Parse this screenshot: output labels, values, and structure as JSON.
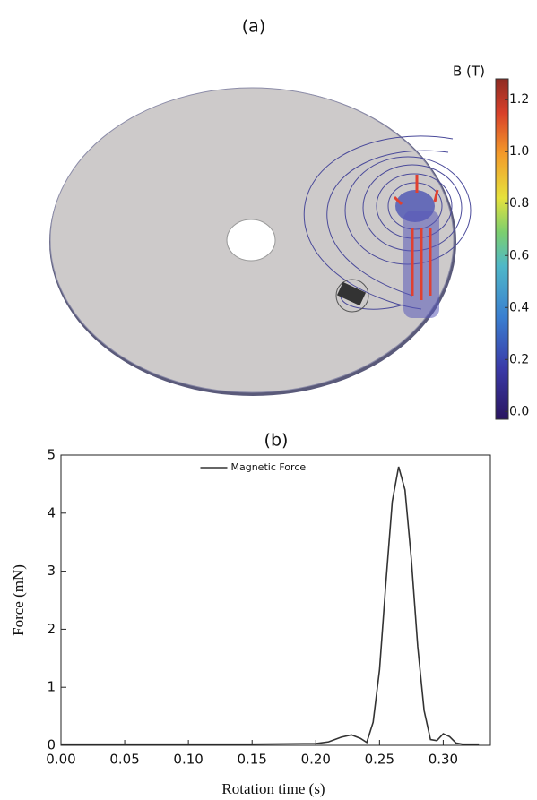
{
  "chart_data": [
    {
      "type": "colorbar",
      "panel_label": "(a)",
      "title": "B (T)",
      "ylim": [
        -0.03,
        1.28
      ],
      "yticks": [
        {
          "value": 0,
          "label": "0.0"
        },
        0.2,
        0.4,
        0.6,
        0.8,
        {
          "value": 1,
          "label": "1.0"
        },
        1.2
      ]
    },
    {
      "type": "line",
      "panel_label": "(b)",
      "x_label": "Rotation time (s)",
      "y_label": "Force (mN)",
      "x": [
        0,
        0.05,
        0.1,
        0.15,
        0.2,
        0.21,
        0.22,
        0.228,
        0.235,
        0.24,
        0.245,
        0.25,
        0.255,
        0.26,
        0.265,
        0.27,
        0.275,
        0.28,
        0.285,
        0.29,
        0.295,
        0.3,
        0.305,
        0.31,
        0.315,
        0.32,
        0.328
      ],
      "series": [
        {
          "name": "Magnetic Force",
          "color": "#333333",
          "values": [
            0.02,
            0.02,
            0.02,
            0.02,
            0.03,
            0.06,
            0.14,
            0.18,
            0.12,
            0.05,
            0.4,
            1.3,
            2.8,
            4.2,
            4.8,
            4.4,
            3.2,
            1.7,
            0.6,
            0.1,
            0.08,
            0.2,
            0.15,
            0.04,
            0.02,
            0.02,
            0.02
          ]
        }
      ],
      "xlim": [
        0,
        0.337
      ],
      "ylim": [
        0,
        5
      ],
      "xticks": [
        {
          "value": 0,
          "label": "0.00"
        },
        0.05,
        {
          "value": 0.1,
          "label": "0.10"
        },
        0.15,
        {
          "value": 0.2,
          "label": "0.20"
        },
        0.25,
        {
          "value": 0.3,
          "label": "0.30"
        }
      ],
      "yticks": [
        0,
        1,
        2,
        3,
        4,
        5
      ],
      "legend": "top-center"
    }
  ]
}
